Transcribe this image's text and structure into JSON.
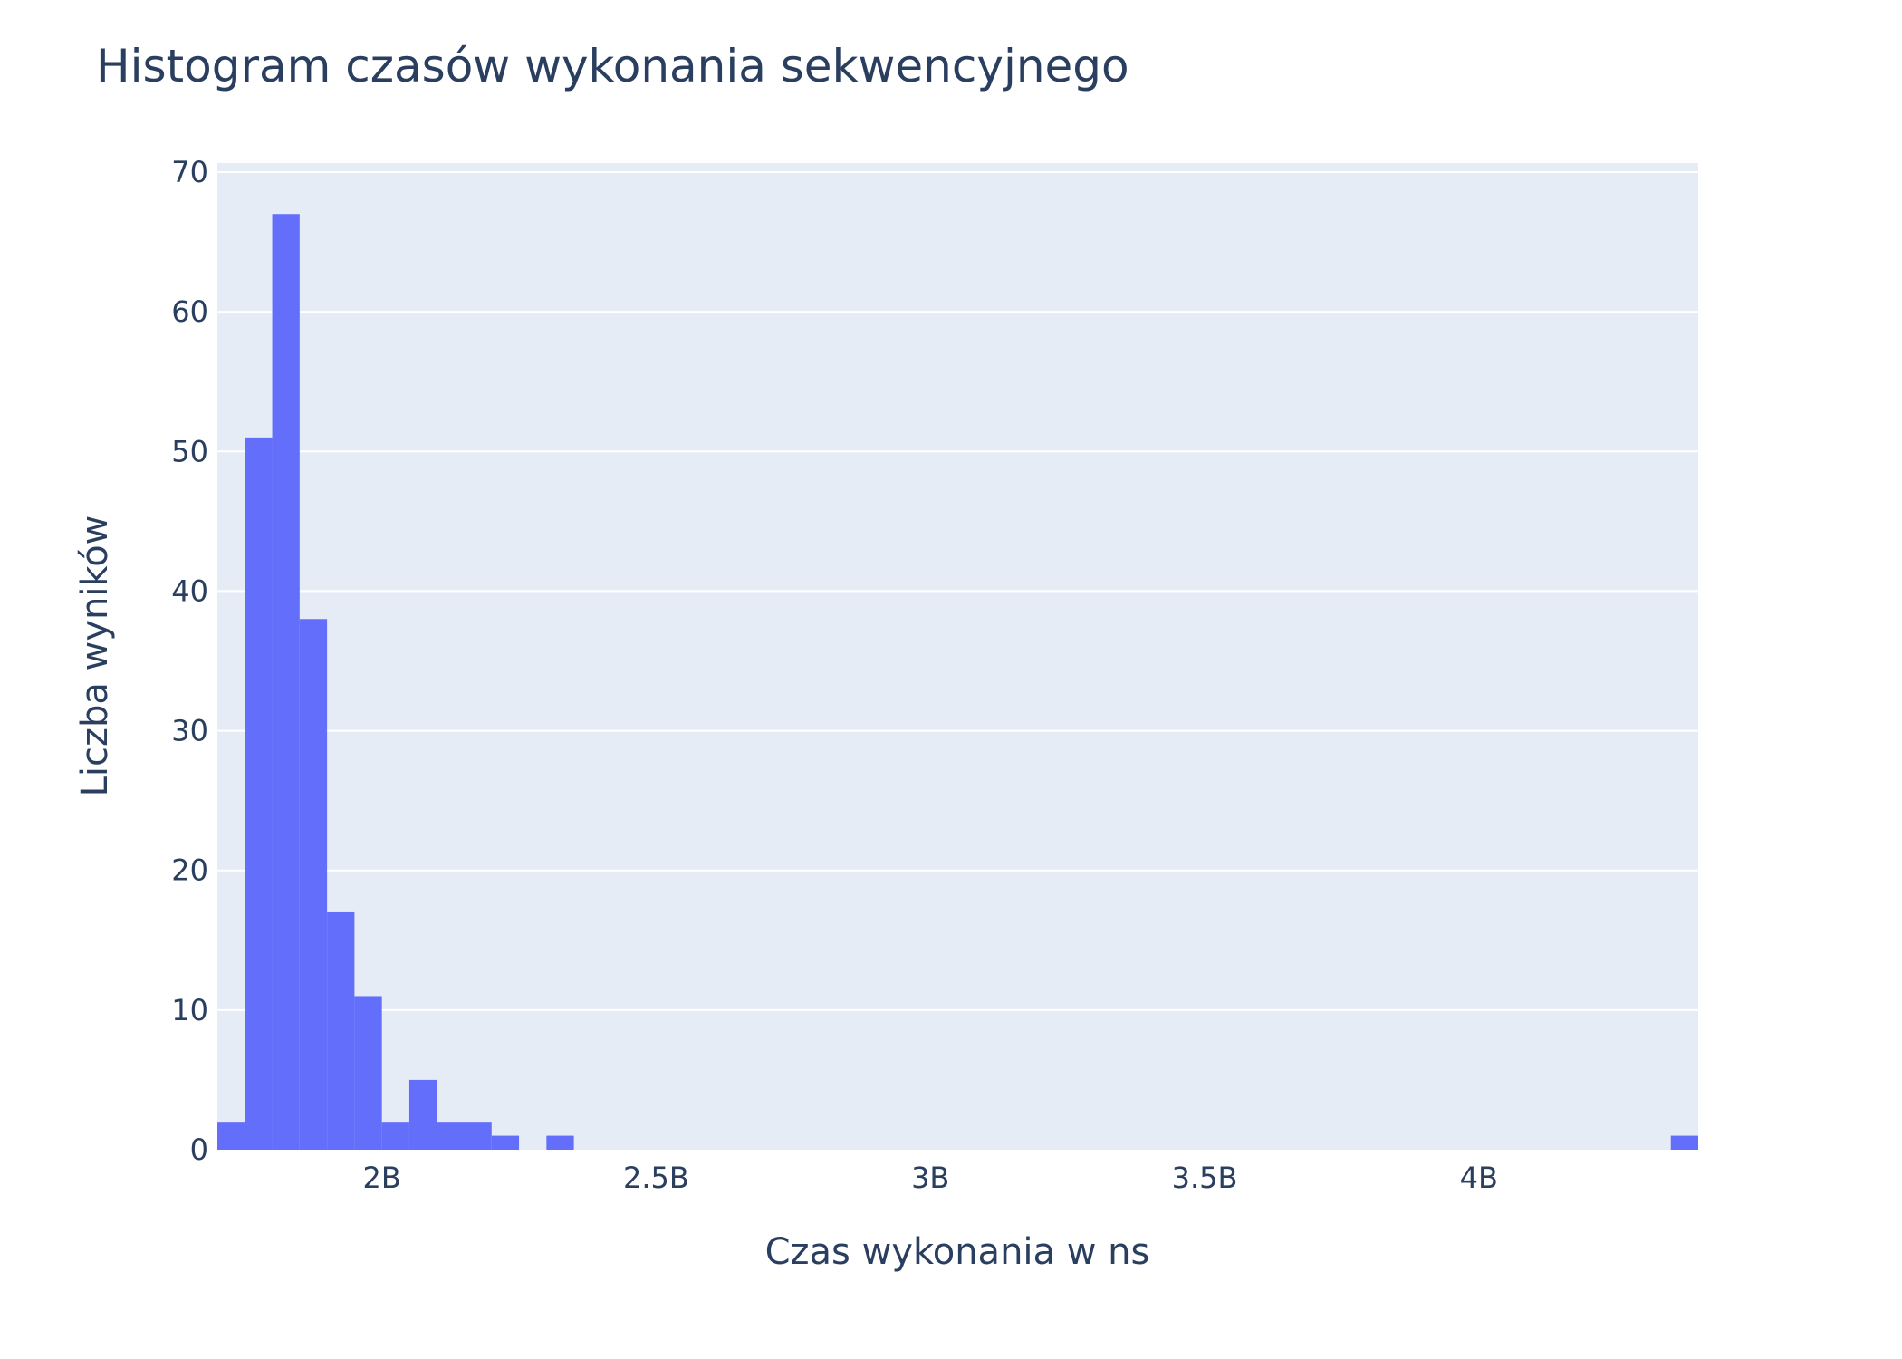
{
  "chart_data": {
    "type": "bar",
    "title": "Histogram czasów wykonania sekwencyjnego",
    "xlabel": "Czas wykonania w ns",
    "ylabel": "Liczba wyników",
    "xlim": [
      1700000000,
      4400000000
    ],
    "ylim": [
      0,
      70
    ],
    "bin_width": 50000000,
    "bins": [
      {
        "start": 1700000000,
        "end": 1750000000,
        "count": 2
      },
      {
        "start": 1750000000,
        "end": 1800000000,
        "count": 51
      },
      {
        "start": 1800000000,
        "end": 1850000000,
        "count": 67
      },
      {
        "start": 1850000000,
        "end": 1900000000,
        "count": 38
      },
      {
        "start": 1900000000,
        "end": 1950000000,
        "count": 17
      },
      {
        "start": 1950000000,
        "end": 2000000000,
        "count": 11
      },
      {
        "start": 2000000000,
        "end": 2050000000,
        "count": 2
      },
      {
        "start": 2050000000,
        "end": 2100000000,
        "count": 5
      },
      {
        "start": 2100000000,
        "end": 2150000000,
        "count": 2
      },
      {
        "start": 2150000000,
        "end": 2200000000,
        "count": 2
      },
      {
        "start": 2200000000,
        "end": 2250000000,
        "count": 1
      },
      {
        "start": 2300000000,
        "end": 2350000000,
        "count": 1
      },
      {
        "start": 4350000000,
        "end": 4400000000,
        "count": 1
      }
    ],
    "x_ticks": [
      {
        "value": 2000000000,
        "label": "2B"
      },
      {
        "value": 2500000000,
        "label": "2.5B"
      },
      {
        "value": 3000000000,
        "label": "3B"
      },
      {
        "value": 3500000000,
        "label": "3.5B"
      },
      {
        "value": 4000000000,
        "label": "4B"
      }
    ],
    "y_ticks": [
      {
        "value": 0,
        "label": "0"
      },
      {
        "value": 10,
        "label": "10"
      },
      {
        "value": 20,
        "label": "20"
      },
      {
        "value": 30,
        "label": "30"
      },
      {
        "value": 40,
        "label": "40"
      },
      {
        "value": 50,
        "label": "50"
      },
      {
        "value": 60,
        "label": "60"
      },
      {
        "value": 70,
        "label": "70"
      }
    ],
    "grid": true,
    "legend": "none",
    "colors": {
      "bar": "#636efa",
      "plot_bg": "#e5ecf6",
      "grid": "#ffffff",
      "text": "#2a3f5f"
    }
  }
}
